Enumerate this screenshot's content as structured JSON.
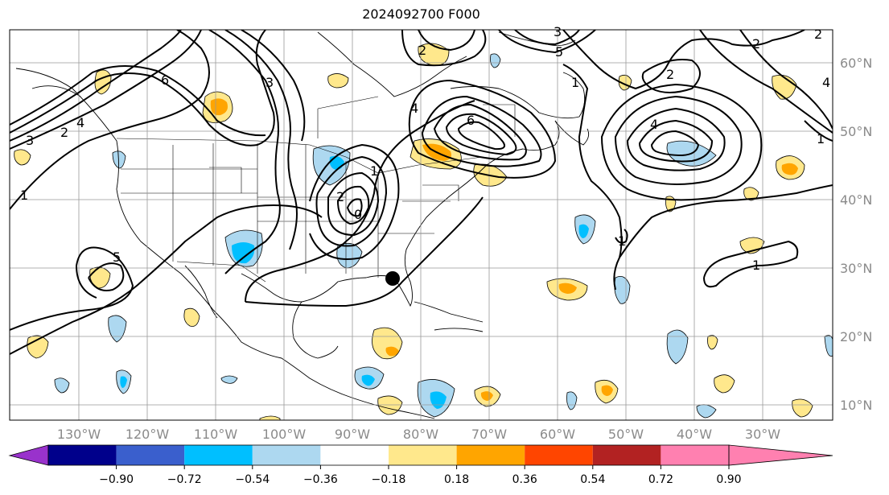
{
  "title": "2024092700 F000",
  "map": {
    "lon_labels": [
      "130°W",
      "120°W",
      "110°W",
      "100°W",
      "90°W",
      "80°W",
      "70°W",
      "60°W",
      "50°W",
      "40°W",
      "30°W"
    ],
    "lat_labels": [
      "60°N",
      "50°N",
      "40°N",
      "30°N",
      "20°N",
      "10°N"
    ],
    "contour_labels": [
      "1",
      "2",
      "3",
      "4",
      "5",
      "6",
      "0",
      "1",
      "2",
      "3",
      "4",
      "5",
      "6",
      "2",
      "4",
      "3",
      "2",
      "1",
      "1",
      "2",
      "4",
      "1",
      "1",
      "2"
    ]
  },
  "colorbar": {
    "ticks": [
      "−0.90",
      "−0.72",
      "−0.54",
      "−0.36",
      "−0.18",
      "0.18",
      "0.36",
      "0.54",
      "0.72",
      "0.90"
    ],
    "colors": [
      "#9932cc",
      "#00008b",
      "#3a5fcd",
      "#00bfff",
      "#add8f0",
      "#ffffff",
      "#ffe88c",
      "#ffa500",
      "#ff4500",
      "#b22222",
      "#ff80b0"
    ]
  },
  "marker": {
    "name": "storm-center"
  }
}
